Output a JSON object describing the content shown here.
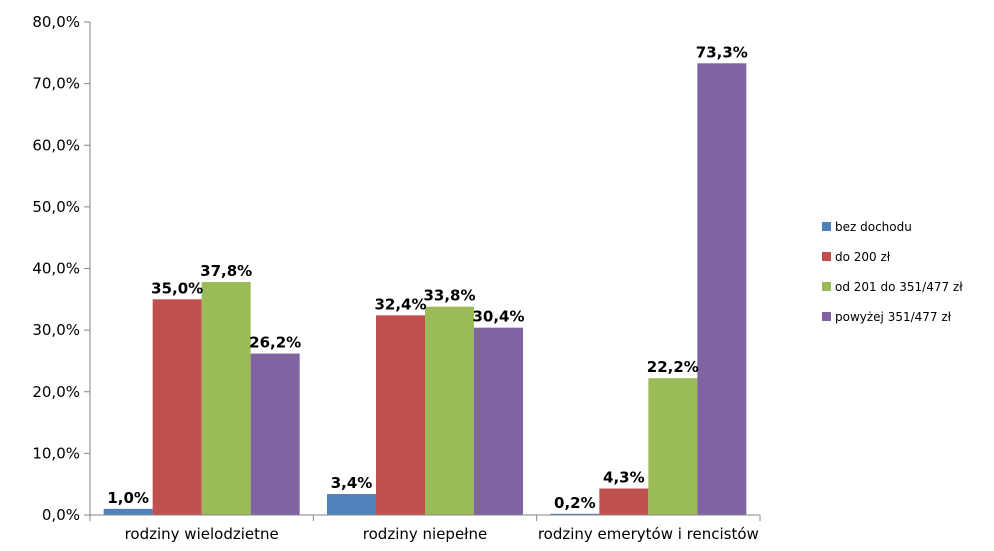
{
  "chart_data": {
    "type": "bar",
    "categories": [
      "rodziny wielodzietne",
      "rodziny niepełne",
      "rodziny emerytów i rencistów"
    ],
    "series": [
      {
        "name": "bez dochodu",
        "color": "#4F81BD",
        "values": [
          1.0,
          3.4,
          0.2
        ],
        "labels": [
          "1,0%",
          "3,4%",
          "0,2%"
        ]
      },
      {
        "name": "do 200 zł",
        "color": "#C0504D",
        "values": [
          35.0,
          32.4,
          4.3
        ],
        "labels": [
          "35,0%",
          "32,4%",
          "4,3%"
        ]
      },
      {
        "name": "od 201 do 351/477 zł",
        "color": "#9BBB59",
        "values": [
          37.8,
          33.8,
          22.2
        ],
        "labels": [
          "37,8%",
          "33,8%",
          "22,2%"
        ]
      },
      {
        "name": "powyżej 351/477 zł",
        "color": "#8064A2",
        "values": [
          26.2,
          30.4,
          73.3
        ],
        "labels": [
          "26,2%",
          "30,4%",
          "73,3%"
        ]
      }
    ],
    "y_ticks": [
      "0,0%",
      "10,0%",
      "20,0%",
      "30,0%",
      "40,0%",
      "50,0%",
      "60,0%",
      "70,0%",
      "80,0%"
    ],
    "ylim": [
      0,
      80
    ],
    "title": "",
    "xlabel": "",
    "ylabel": "",
    "grid": false,
    "legend_position": "right"
  }
}
